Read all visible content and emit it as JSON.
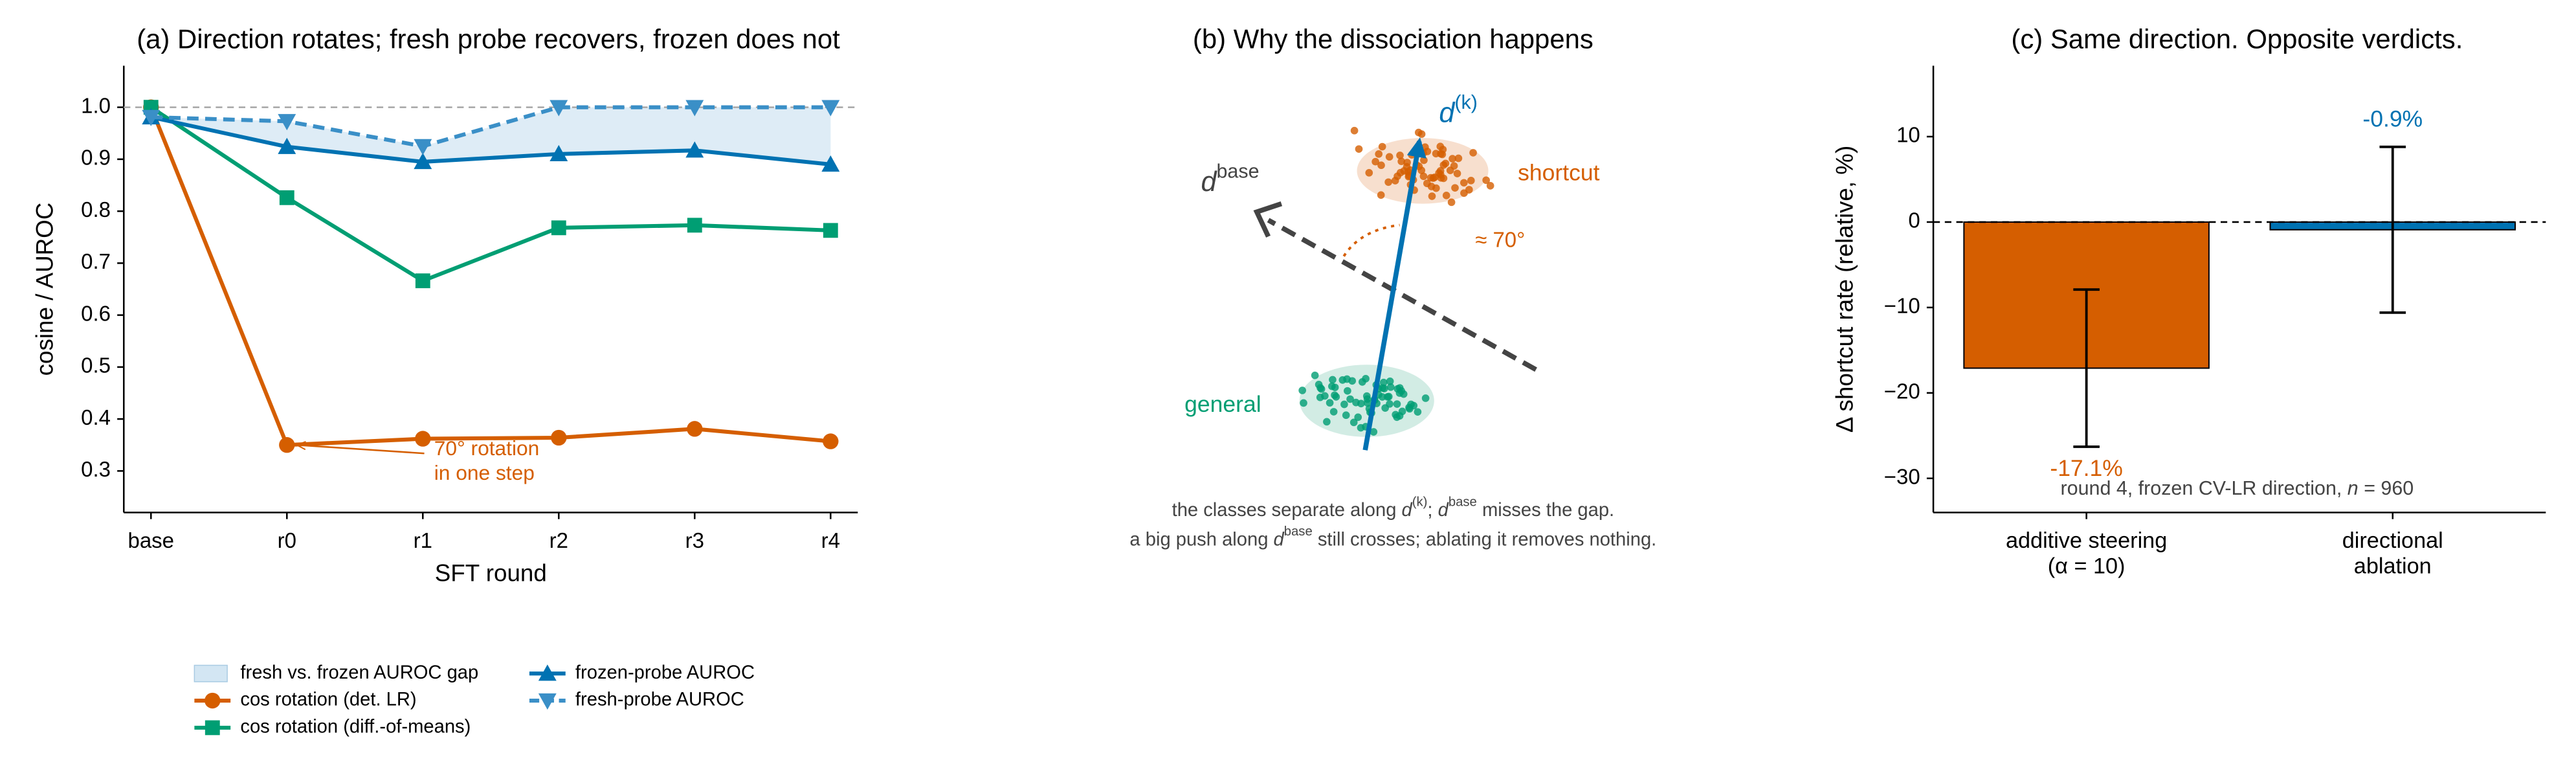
{
  "chart_data": [
    {
      "type": "line",
      "title": "(a) Direction rotates; fresh probe recovers, frozen does not",
      "x_label": "SFT round",
      "y_label": "cosine / AUROC",
      "categories": [
        "base",
        "r0",
        "r1",
        "r2",
        "r3",
        "r4"
      ],
      "series": [
        {
          "name": "cos rotation (det. LR)",
          "color": "#d55e00",
          "marker": "circle",
          "line_style": "solid",
          "values": [
            1.0,
            0.35,
            0.362,
            0.364,
            0.381,
            0.357
          ]
        },
        {
          "name": "cos rotation (diff.-of-means)",
          "color": "#009e73",
          "marker": "square",
          "line_style": "solid",
          "values": [
            1.0,
            0.826,
            0.666,
            0.768,
            0.773,
            0.763
          ]
        },
        {
          "name": "frozen-probe AUROC",
          "color": "#0072b2",
          "marker": "triangle-up",
          "line_style": "solid",
          "values": [
            0.981,
            0.924,
            0.895,
            0.91,
            0.917,
            0.89
          ]
        },
        {
          "name": "fresh-probe AUROC",
          "color": "#3a8fc7",
          "marker": "triangle-down",
          "line_style": "dashed",
          "values": [
            0.981,
            0.973,
            0.925,
            1.0,
            1.0,
            1.0
          ]
        }
      ],
      "fill_between": {
        "name": "fresh vs. frozen AUROC gap",
        "color": "#d3e6f3",
        "series": [
          3,
          2
        ]
      },
      "hline": 1.0,
      "annotation": "70° rotation\nin one step",
      "ylim": [
        0.22,
        1.08
      ],
      "yticks": [
        0.3,
        0.4,
        0.5,
        0.6,
        0.7,
        0.8,
        0.9,
        {
          "value": 1,
          "label": "1.0"
        }
      ],
      "legend": "below"
    },
    {
      "type": "diagram",
      "title": "(b) Why the dissociation happens",
      "labels": {
        "dk": [
          "d",
          "(k)"
        ],
        "dbase": [
          "d",
          "base"
        ],
        "shortcut": "shortcut",
        "general": "general",
        "angle": "≈ 70°"
      },
      "caption": [
        [
          "the classes separate along ",
          "d",
          "(k)",
          "; ",
          "d",
          "base",
          " misses the gap."
        ],
        [
          "a big push along ",
          "d",
          "base",
          " still crosses; ablating it removes nothing."
        ]
      ]
    },
    {
      "type": "bar",
      "title": "(c) Same direction. Opposite verdicts.",
      "y_label": "Δ shortcut rate (relative, %)",
      "categories": [
        "additive steering\n(α = 10)",
        "directional\nablation"
      ],
      "values": [
        -17.1,
        -0.9
      ],
      "value_labels": [
        "-17.1%",
        "-0.9%"
      ],
      "errors": [
        9.2,
        9.7
      ],
      "colors": [
        "#d55e00",
        "#0072b2"
      ],
      "hline": 0,
      "note": [
        "round 4, frozen CV-LR direction, ",
        "n",
        " = 960"
      ],
      "ylim": [
        -34,
        18.3
      ],
      "yticks": [
        {
          "value": -30,
          "label": "−30"
        },
        {
          "value": -20,
          "label": "−20"
        },
        {
          "value": -10,
          "label": "−10"
        },
        0,
        10
      ]
    }
  ]
}
